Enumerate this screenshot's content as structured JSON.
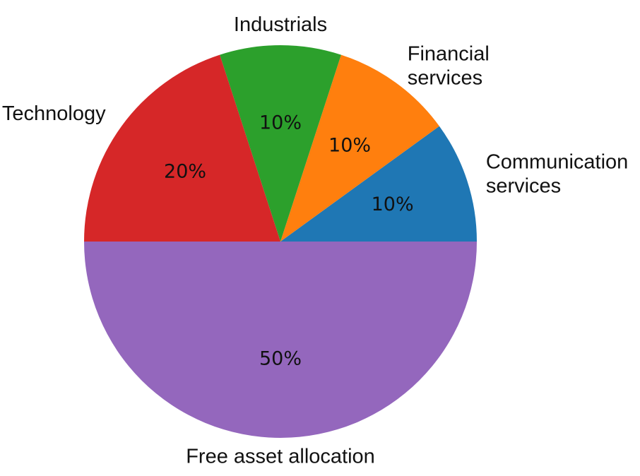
{
  "chart_data": {
    "type": "pie",
    "categories": [
      "Communication\nservices",
      "Financial\nservices",
      "Industrials",
      "Technology",
      "Free asset allocation"
    ],
    "values": [
      10,
      10,
      10,
      20,
      50
    ],
    "value_labels": [
      "10%",
      "10%",
      "10%",
      "20%",
      "50%"
    ],
    "colors": [
      "#1f77b4",
      "#ff7f0e",
      "#2ca02c",
      "#d62728",
      "#9467bd"
    ],
    "startangle": 0
  }
}
